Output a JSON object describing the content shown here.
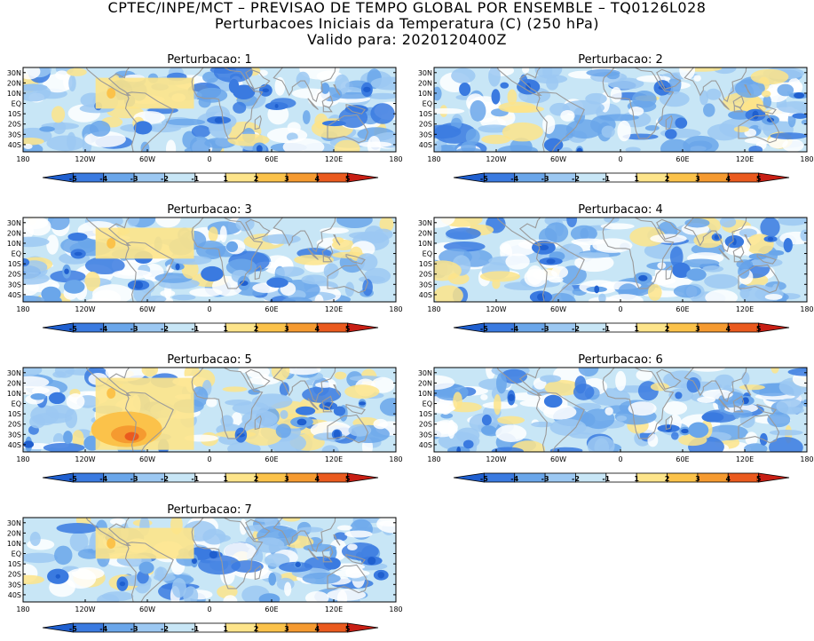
{
  "header": {
    "line1": "CPTEC/INPE/MCT – PREVISAO DE TEMPO GLOBAL POR ENSEMBLE – TQ0126L028",
    "line2": "Perturbacoes Iniciais da Temperatura (C) (250 hPa)",
    "line3": "Valido para: 2020120400Z"
  },
  "axes": {
    "lat_labels": [
      "30N",
      "20N",
      "10N",
      "EQ",
      "10S",
      "20S",
      "30S",
      "40S"
    ],
    "lon_labels": [
      "180",
      "120W",
      "60W",
      "0",
      "60E",
      "120E",
      "180"
    ]
  },
  "colorbar": {
    "labels": [
      "-5",
      "-4",
      "-3",
      "-2",
      "-1",
      "1",
      "2",
      "3",
      "4",
      "5"
    ],
    "colors": {
      "neg5": "#1f5fcf",
      "neg4": "#3a7ae0",
      "neg3": "#6aa6ea",
      "neg2": "#9cc8f2",
      "neg1": "#c8e6f6",
      "zero": "#ffffff",
      "pos1": "#fde48a",
      "pos2": "#fbc24a",
      "pos3": "#f59a30",
      "pos4": "#ea5a1e",
      "pos5": "#c81e14"
    }
  },
  "panels": [
    {
      "title": "Perturbacao: 1"
    },
    {
      "title": "Perturbacao: 2"
    },
    {
      "title": "Perturbacao: 3"
    },
    {
      "title": "Perturbacao: 4"
    },
    {
      "title": "Perturbacao: 5"
    },
    {
      "title": "Perturbacao: 6"
    },
    {
      "title": "Perturbacao: 7"
    }
  ]
}
